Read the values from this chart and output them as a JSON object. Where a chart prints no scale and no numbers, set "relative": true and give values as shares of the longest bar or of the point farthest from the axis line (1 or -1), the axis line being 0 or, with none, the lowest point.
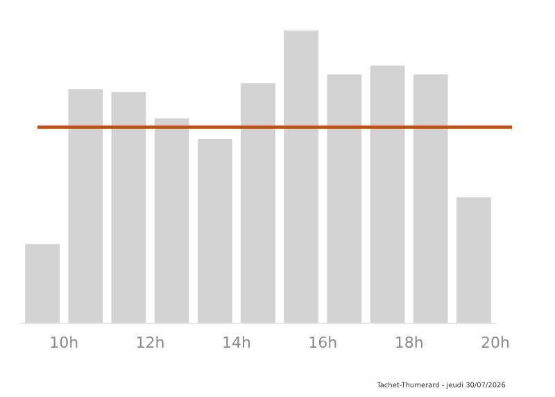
{
  "chart_data": {
    "type": "bar",
    "relative": true,
    "x": [
      9.5,
      10.5,
      11.5,
      12.5,
      13.5,
      14.5,
      15.5,
      16.5,
      17.5,
      18.5,
      19.5
    ],
    "values": [
      0.27,
      0.8,
      0.79,
      0.7,
      0.63,
      0.82,
      1,
      0.85,
      0.88,
      0.85,
      0.43
    ],
    "color": "#d3d3d3",
    "xlim": [
      9,
      20
    ],
    "xticks": [
      {
        "value": 10,
        "label": "10h"
      },
      {
        "value": 12,
        "label": "12h"
      },
      {
        "value": 14,
        "label": "14h"
      },
      {
        "value": 16,
        "label": "16h"
      },
      {
        "value": 18,
        "label": "18h"
      },
      {
        "value": 20,
        "label": "20h"
      }
    ],
    "ref_lines": [
      {
        "axis": "y",
        "value": 0.67,
        "color": "#c0501a"
      }
    ],
    "annotations": [
      "Tachet-Thumerard - jeudi 30/07/2026"
    ],
    "grid": false,
    "legend": false
  }
}
